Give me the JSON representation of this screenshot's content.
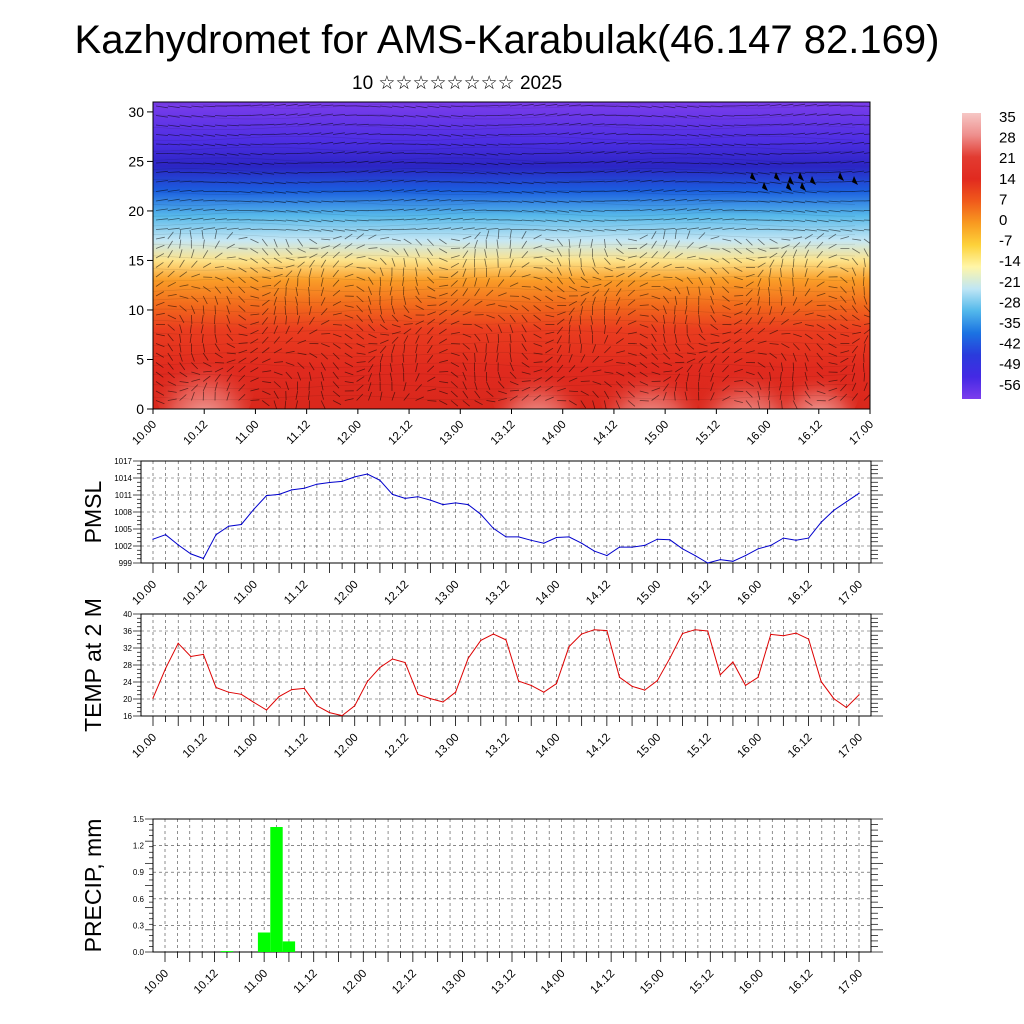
{
  "title": "Kazhydromet for AMS-Karabulak(46.147 82.169)",
  "subtitle": "10 ☆☆☆☆☆☆☆☆ 2025",
  "time_labels": [
    "10.00",
    "10.12",
    "11.00",
    "11.12",
    "12.00",
    "12.12",
    "13.00",
    "13.12",
    "14.00",
    "14.12",
    "15.00",
    "15.12",
    "16.00",
    "16.12",
    "17.00"
  ],
  "chart_data": [
    {
      "type": "heatmap",
      "name": "cross-section",
      "y_ticks": [
        0,
        5,
        10,
        15,
        20,
        25,
        30
      ],
      "ylim": [
        0,
        31
      ],
      "colorbar": {
        "labels": [
          "35",
          "28",
          "21",
          "14",
          "7",
          "0",
          "-7",
          "-14",
          "-21",
          "-28",
          "-35",
          "-42",
          "-49",
          "-56"
        ],
        "colors": [
          "#f6c7c5",
          "#ee8f8d",
          "#e23b31",
          "#e12a1f",
          "#f05a1b",
          "#f89a20",
          "#fdd23a",
          "#fff6a8",
          "#bfe6f5",
          "#52b8eb",
          "#1b73e2",
          "#2a3bdc",
          "#4429e4",
          "#7c3ded"
        ]
      },
      "vertical_profile": [
        {
          "level": 0,
          "color": "#d9281c"
        },
        {
          "level": 4,
          "color": "#e02a1e"
        },
        {
          "level": 8,
          "color": "#ea3d1f"
        },
        {
          "level": 10.5,
          "color": "#f26a1c"
        },
        {
          "level": 13,
          "color": "#fa9d28"
        },
        {
          "level": 15,
          "color": "#fde38a"
        },
        {
          "level": 17,
          "color": "#c6e7f4"
        },
        {
          "level": 19.5,
          "color": "#57b9ea"
        },
        {
          "level": 22,
          "color": "#1b5fdf"
        },
        {
          "level": 24.5,
          "color": "#2b25c4"
        },
        {
          "level": 27,
          "color": "#4c2ee3"
        },
        {
          "level": 31,
          "color": "#7b3deb"
        }
      ],
      "warm_cores": [
        {
          "t": 0.5,
          "level": 3,
          "rx": 0.5,
          "ry": 6
        },
        {
          "t": 3.75,
          "level": 2,
          "rx": 0.45,
          "ry": 5
        },
        {
          "t": 4.85,
          "level": 2,
          "rx": 0.5,
          "ry": 5
        },
        {
          "t": 5.8,
          "level": 2,
          "rx": 0.5,
          "ry": 5
        },
        {
          "t": 6.5,
          "level": 2,
          "rx": 0.4,
          "ry": 4
        }
      ]
    },
    {
      "type": "line",
      "name": "pmsl",
      "ylabel": "PMSL",
      "color": "#0000cc",
      "ylim": [
        999,
        1017
      ],
      "y_ticks": [
        999,
        1002,
        1005,
        1008,
        1011,
        1014,
        1017
      ],
      "values": [
        1003.2,
        1004.0,
        1002.2,
        1000.6,
        999.8,
        1004.0,
        1005.5,
        1005.8,
        1008.5,
        1010.9,
        1011.1,
        1011.9,
        1012.2,
        1012.9,
        1013.2,
        1013.4,
        1014.2,
        1014.7,
        1013.6,
        1011.1,
        1010.4,
        1010.7,
        1010.1,
        1009.3,
        1009.6,
        1009.3,
        1007.6,
        1005.1,
        1003.6,
        1003.6,
        1003.0,
        1002.5,
        1003.5,
        1003.6,
        1002.5,
        1001.1,
        1000.3,
        1001.8,
        1001.8,
        1002.1,
        1003.2,
        1003.1,
        1001.5,
        1000.3,
        999.0,
        999.6,
        999.3,
        1000.3,
        1001.5,
        1002.1,
        1003.4,
        1003.0,
        1003.4,
        1006.2,
        1008.3,
        1009.8,
        1011.3
      ]
    },
    {
      "type": "line",
      "name": "temp2m",
      "ylabel": "TEMP at 2 M",
      "color": "#dd0000",
      "ylim": [
        16,
        40
      ],
      "y_ticks": [
        16,
        20,
        24,
        28,
        32,
        36,
        40
      ],
      "values": [
        20.2,
        27.2,
        33.1,
        30.0,
        30.5,
        22.7,
        21.6,
        21.1,
        19.2,
        17.4,
        20.6,
        22.2,
        22.5,
        18.4,
        16.8,
        16.1,
        18.4,
        24.1,
        27.4,
        29.4,
        28.6,
        21.1,
        20.1,
        19.3,
        21.6,
        29.6,
        33.8,
        35.3,
        33.9,
        24.2,
        23.2,
        21.6,
        23.6,
        32.3,
        35.3,
        36.3,
        36.1,
        25.1,
        23.0,
        22.1,
        24.3,
        29.6,
        35.4,
        36.3,
        36.0,
        25.7,
        28.7,
        23.2,
        25.1,
        35.2,
        34.9,
        35.5,
        34.1,
        24.1,
        20.1,
        18.0,
        21.0
      ]
    },
    {
      "type": "bar",
      "name": "precip",
      "ylabel": "PRECIP, mm",
      "color": "#00ff00",
      "ylim": [
        0,
        1.5
      ],
      "y_ticks": [
        "0.0",
        "0.3",
        "0.6",
        "0.9",
        "1.2",
        "1.5"
      ],
      "values": [
        0,
        0,
        0,
        0,
        0,
        0.01,
        0,
        0,
        0.22,
        1.41,
        0.12,
        0,
        0,
        0,
        0,
        0,
        0,
        0,
        0,
        0,
        0,
        0,
        0,
        0,
        0,
        0,
        0,
        0,
        0,
        0,
        0,
        0,
        0,
        0,
        0,
        0,
        0,
        0,
        0,
        0,
        0,
        0,
        0,
        0,
        0,
        0,
        0,
        0,
        0,
        0,
        0,
        0,
        0,
        0,
        0,
        0,
        0
      ]
    }
  ]
}
